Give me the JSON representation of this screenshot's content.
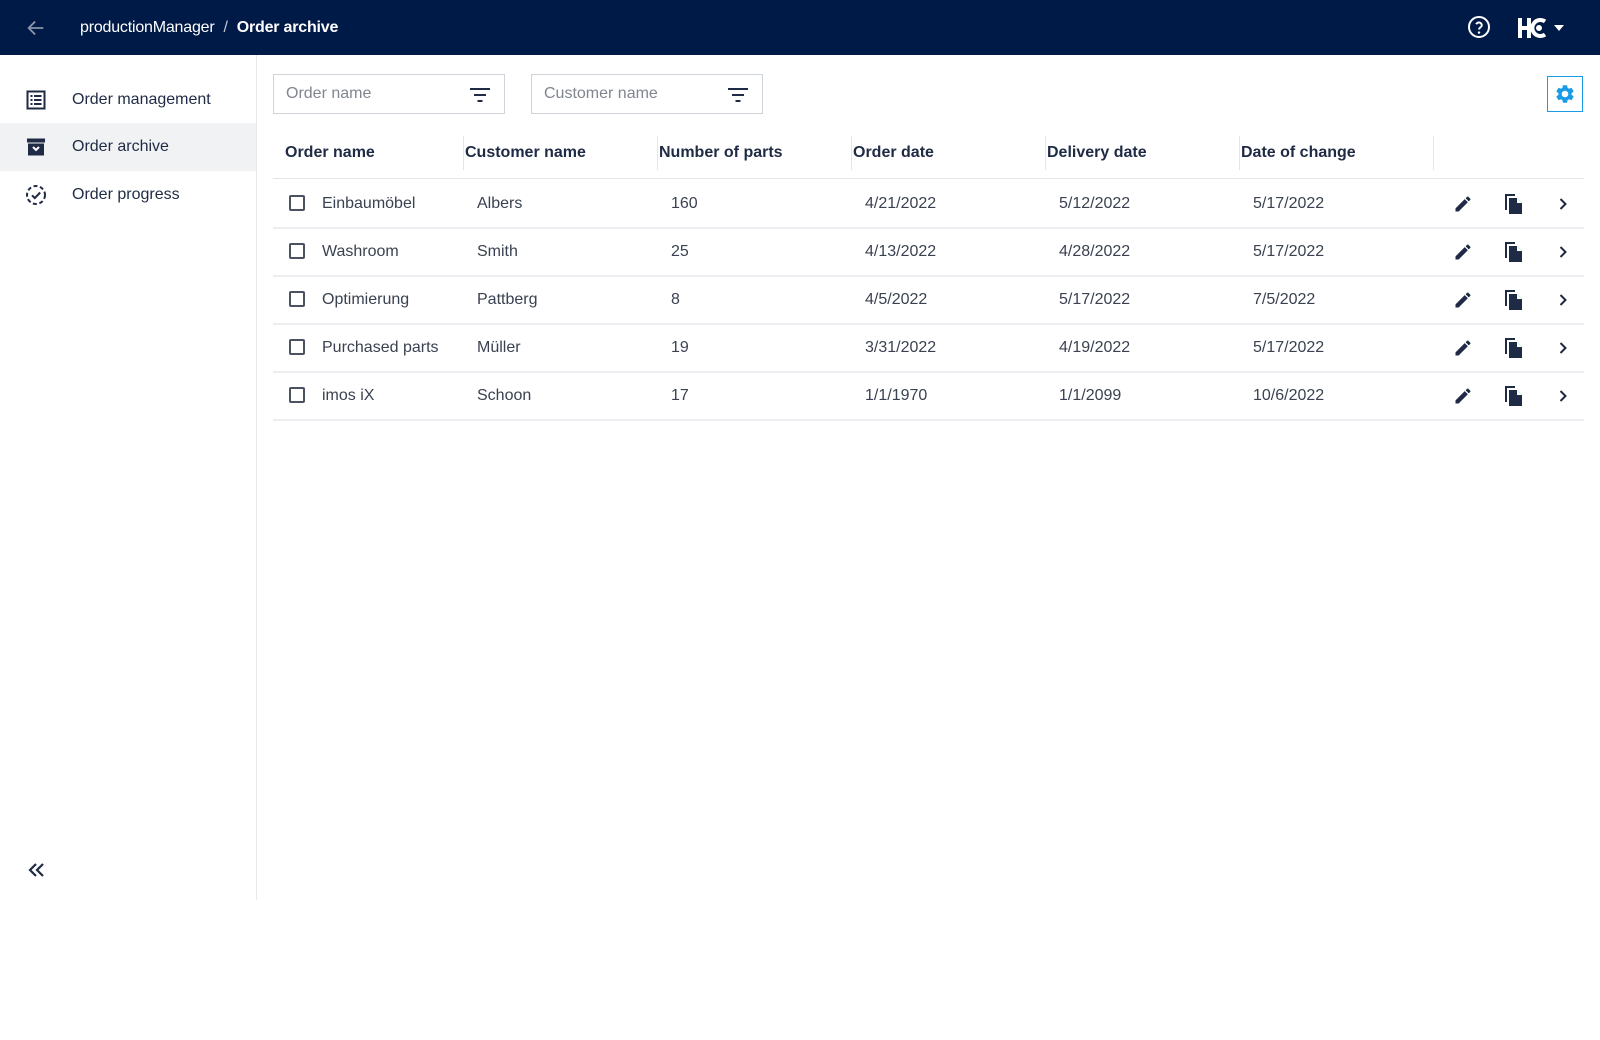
{
  "header": {
    "back_icon": "arrow-left-icon",
    "breadcrumb": {
      "app": "productionManager",
      "separator": "/",
      "current": "Order archive"
    },
    "help_icon": "help-circle-icon",
    "logo_icon": "hc-logo-icon",
    "logo_menu_icon": "caret-down-icon"
  },
  "sidebar": {
    "items": [
      {
        "label": "Order management",
        "icon": "list-icon",
        "active": false
      },
      {
        "label": "Order archive",
        "icon": "archive-icon",
        "active": true
      },
      {
        "label": "Order progress",
        "icon": "progress-circle-icon",
        "active": false
      }
    ],
    "collapse_icon": "double-chevron-left-icon"
  },
  "filters": {
    "order_name": {
      "placeholder": "Order name",
      "value": ""
    },
    "customer_name": {
      "placeholder": "Customer name",
      "value": ""
    },
    "filter_icon": "filter-icon",
    "settings_icon": "gear-icon"
  },
  "table": {
    "columns": [
      "Order name",
      "Customer name",
      "Number of parts",
      "Order date",
      "Delivery date",
      "Date of change"
    ],
    "rows": [
      {
        "order_name": "Einbaumöbel",
        "customer": "Albers",
        "parts": "160",
        "order_date": "4/21/2022",
        "delivery_date": "5/12/2022",
        "changed": "5/17/2022"
      },
      {
        "order_name": "Washroom",
        "customer": "Smith",
        "parts": "25",
        "order_date": "4/13/2022",
        "delivery_date": "4/28/2022",
        "changed": "5/17/2022"
      },
      {
        "order_name": "Optimierung",
        "customer": "Pattberg",
        "parts": "8",
        "order_date": "4/5/2022",
        "delivery_date": "5/17/2022",
        "changed": "7/5/2022"
      },
      {
        "order_name": "Purchased parts",
        "customer": "Müller",
        "parts": "19",
        "order_date": "3/31/2022",
        "delivery_date": "4/19/2022",
        "changed": "5/17/2022"
      },
      {
        "order_name": "imos iX",
        "customer": "Schoon",
        "parts": "17",
        "order_date": "1/1/1970",
        "delivery_date": "1/1/2099",
        "changed": "10/6/2022"
      }
    ],
    "row_actions": [
      "pencil-icon",
      "copy-icon",
      "chevron-right-icon"
    ]
  },
  "colors": {
    "topbar": "#001a47",
    "accent": "#1a9be6",
    "active_nav": "#f1f2f4"
  }
}
